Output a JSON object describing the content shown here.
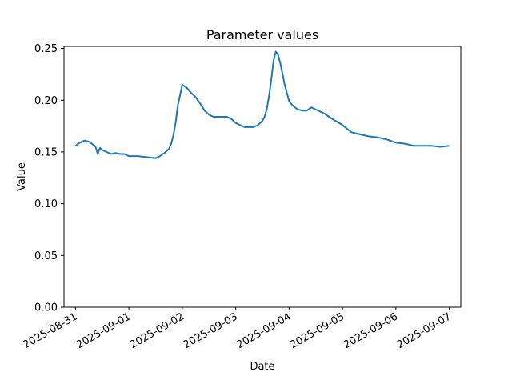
{
  "chart_data": {
    "type": "line",
    "title": "Parameter values",
    "xlabel": "Date",
    "ylabel": "Value",
    "x_ticks": [
      "2025-08-31",
      "2025-09-01",
      "2025-09-02",
      "2025-09-03",
      "2025-09-04",
      "2025-09-05",
      "2025-09-06",
      "2025-09-07"
    ],
    "y_ticks": [
      "0.00",
      "0.05",
      "0.10",
      "0.15",
      "0.20",
      "0.25"
    ],
    "xlim": [
      "2025-08-30T18:50",
      "2025-09-07T05:10"
    ],
    "ylim": [
      0,
      0.252
    ],
    "grid": false,
    "color": "#1f77b4",
    "series": [
      {
        "x": [
          "2025-08-31T00:00",
          "2025-08-31T02:00",
          "2025-08-31T04:00",
          "2025-08-31T06:00",
          "2025-08-31T08:00",
          "2025-08-31T09:00",
          "2025-08-31T10:00",
          "2025-08-31T11:00",
          "2025-08-31T12:00",
          "2025-08-31T14:00",
          "2025-08-31T16:00",
          "2025-08-31T18:00",
          "2025-08-31T20:00",
          "2025-08-31T22:00",
          "2025-09-01T00:00",
          "2025-09-01T04:00",
          "2025-09-01T08:00",
          "2025-09-01T12:00",
          "2025-09-01T14:00",
          "2025-09-01T16:00",
          "2025-09-01T18:00",
          "2025-09-01T19:00",
          "2025-09-01T20:00",
          "2025-09-01T21:00",
          "2025-09-01T22:00",
          "2025-09-02T00:00",
          "2025-09-02T02:00",
          "2025-09-02T04:00",
          "2025-09-02T06:00",
          "2025-09-02T08:00",
          "2025-09-02T10:00",
          "2025-09-02T12:00",
          "2025-09-02T14:00",
          "2025-09-02T16:00",
          "2025-09-02T18:00",
          "2025-09-02T20:00",
          "2025-09-02T22:00",
          "2025-09-03T00:00",
          "2025-09-03T04:00",
          "2025-09-03T08:00",
          "2025-09-03T10:00",
          "2025-09-03T12:00",
          "2025-09-03T13:00",
          "2025-09-03T14:00",
          "2025-09-03T15:00",
          "2025-09-03T16:00",
          "2025-09-03T17:00",
          "2025-09-03T18:00",
          "2025-09-03T19:00",
          "2025-09-03T20:00",
          "2025-09-03T21:00",
          "2025-09-03T22:00",
          "2025-09-04T00:00",
          "2025-09-04T02:00",
          "2025-09-04T04:00",
          "2025-09-04T06:00",
          "2025-09-04T08:00",
          "2025-09-04T10:00",
          "2025-09-04T12:00",
          "2025-09-04T14:00",
          "2025-09-04T16:00",
          "2025-09-04T18:00",
          "2025-09-04T20:00",
          "2025-09-05T00:00",
          "2025-09-05T04:00",
          "2025-09-05T08:00",
          "2025-09-05T12:00",
          "2025-09-05T16:00",
          "2025-09-05T20:00",
          "2025-09-06T00:00",
          "2025-09-06T04:00",
          "2025-09-06T08:00",
          "2025-09-06T12:00",
          "2025-09-06T16:00",
          "2025-09-06T20:00",
          "2025-09-07T00:00"
        ],
        "y": [
          0.156,
          0.159,
          0.161,
          0.16,
          0.157,
          0.155,
          0.148,
          0.154,
          0.152,
          0.15,
          0.148,
          0.149,
          0.148,
          0.148,
          0.146,
          0.146,
          0.145,
          0.144,
          0.146,
          0.149,
          0.153,
          0.158,
          0.166,
          0.178,
          0.195,
          0.215,
          0.212,
          0.207,
          0.203,
          0.197,
          0.19,
          0.186,
          0.184,
          0.184,
          0.184,
          0.184,
          0.182,
          0.178,
          0.174,
          0.174,
          0.176,
          0.18,
          0.184,
          0.192,
          0.204,
          0.22,
          0.238,
          0.247,
          0.244,
          0.236,
          0.226,
          0.215,
          0.199,
          0.194,
          0.191,
          0.19,
          0.19,
          0.193,
          0.191,
          0.189,
          0.187,
          0.184,
          0.181,
          0.176,
          0.169,
          0.167,
          0.165,
          0.164,
          0.162,
          0.159,
          0.158,
          0.156,
          0.156,
          0.156,
          0.155,
          0.156
        ]
      }
    ]
  }
}
